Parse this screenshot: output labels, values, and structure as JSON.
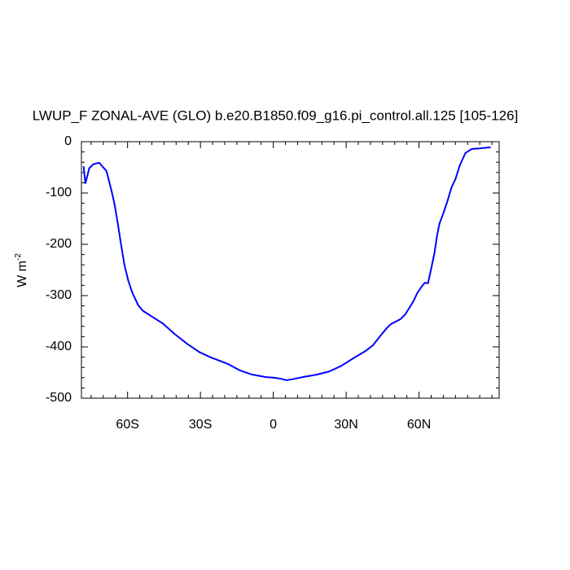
{
  "chart_data": {
    "type": "line",
    "title": "LWUP_F ZONAL-AVE (GLO) b.e20.B1850.f09_g16.pi_control.all.125 [105-126]",
    "ylabel": "W m",
    "ylabel_sup": "-2",
    "xlim": [
      -79,
      93
    ],
    "ylim": [
      -500,
      0
    ],
    "xticks": [
      {
        "value": -60,
        "label": "60S"
      },
      {
        "value": -30,
        "label": "30S"
      },
      0,
      {
        "value": 30,
        "label": "30N"
      },
      {
        "value": 60,
        "label": "60N"
      }
    ],
    "yticks": [
      -500,
      -400,
      -300,
      -200,
      -100,
      0
    ],
    "xminorticks": [
      -75,
      -70,
      -65,
      -55,
      -50,
      -45,
      -40,
      -35,
      -25,
      -20,
      -15,
      -10,
      -5,
      5,
      10,
      15,
      20,
      25,
      35,
      40,
      45,
      50,
      55,
      65,
      70,
      75,
      80,
      85,
      90
    ],
    "yminorticks": [
      -480,
      -460,
      -440,
      -420,
      -380,
      -360,
      -340,
      -320,
      -280,
      -260,
      -240,
      -220,
      -180,
      -160,
      -140,
      -120,
      -80,
      -60,
      -40,
      -20
    ],
    "series": [
      {
        "color": "#0000ff",
        "x": [
          -78.1,
          -77.4,
          -76.8,
          -75.8,
          -74.1,
          -71.7,
          -70.4,
          -68.7,
          -67.4,
          -66.4,
          -65.4,
          -64,
          -62.7,
          -61.3,
          -59.7,
          -58,
          -55.6,
          -53.6,
          -50.3,
          -45.6,
          -40.6,
          -35.5,
          -30.5,
          -25.5,
          -18.8,
          -13.7,
          -8.7,
          -3,
          0,
          3,
          5.4,
          8,
          12,
          18,
          23,
          28,
          33,
          38,
          41,
          44,
          46.6,
          48.3,
          50.3,
          52.3,
          54.3,
          56,
          57.7,
          59.3,
          61,
          62.4,
          63.7,
          65,
          66.4,
          67.4,
          68.4,
          70,
          71.7,
          73.4,
          75,
          76.8,
          79.1,
          81.8,
          85.1,
          89.5
        ],
        "values": [
          -48,
          -81,
          -71,
          -52,
          -44,
          -41,
          -48,
          -57,
          -81,
          -100,
          -121,
          -160,
          -200,
          -240,
          -271,
          -295,
          -319,
          -330,
          -340,
          -354,
          -375,
          -394,
          -410,
          -421,
          -433,
          -446,
          -454,
          -459,
          -460,
          -462,
          -465,
          -463,
          -459,
          -454,
          -448,
          -437,
          -422,
          -408,
          -397,
          -379,
          -364,
          -356,
          -351,
          -346,
          -337,
          -324,
          -311,
          -295,
          -283,
          -275,
          -276,
          -248,
          -216,
          -184,
          -160,
          -140,
          -116,
          -89,
          -73,
          -46,
          -22,
          -14,
          -13,
          -11
        ]
      }
    ]
  }
}
